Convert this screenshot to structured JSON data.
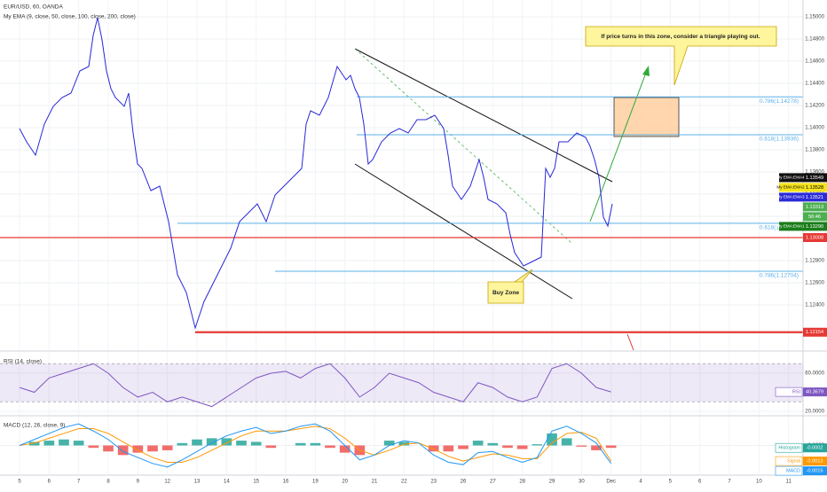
{
  "chart_data": [
    {
      "type": "line",
      "title": "EUR/USD, 60, OANDA",
      "subtitle": "My EMA (9, close, 50, close, 100, close, 200, close)",
      "x": [
        0,
        0.24,
        0.54,
        0.84,
        1.14,
        1.44,
        1.74,
        2.04,
        2.34,
        2.49,
        2.64,
        2.79,
        2.94,
        3.09,
        3.24,
        3.54,
        3.69,
        3.84,
        3.99,
        4.14,
        4.44,
        4.74,
        5.04,
        5.34,
        5.64,
        5.94,
        6.24,
        6.54,
        6.84,
        7.14,
        7.44,
        7.74,
        8.04,
        8.34,
        8.64,
        8.94,
        9.24,
        9.54,
        9.69,
        9.84,
        10.14,
        10.44,
        10.74,
        11.04,
        11.19,
        11.34,
        11.49,
        11.64,
        11.79,
        11.94,
        12.24,
        12.54,
        12.84,
        13.14,
        13.44,
        13.74,
        14.04,
        14.34,
        14.49,
        14.64,
        14.94,
        15.24,
        15.54,
        15.69,
        15.84,
        16.14,
        16.44,
        16.59,
        16.74,
        17.04,
        17.34,
        17.64,
        17.79,
        17.94,
        18.09,
        18.24,
        18.54,
        18.84,
        19.14,
        19.29,
        19.44,
        19.59,
        19.74,
        19.89,
        20.04
      ],
      "series": [
        {
          "name": "EUR/USD",
          "color": "#2828d8",
          "values": [
            1.13992,
            1.13872,
            1.13752,
            1.14032,
            1.14192,
            1.14272,
            1.14312,
            1.14512,
            1.14552,
            1.14832,
            1.14992,
            1.14792,
            1.14512,
            1.14352,
            1.14272,
            1.14192,
            1.14312,
            1.13952,
            1.13672,
            1.13632,
            1.13432,
            1.13472,
            1.13152,
            1.12672,
            1.12512,
            1.12192,
            1.12432,
            1.12592,
            1.12752,
            1.12912,
            1.13152,
            1.13232,
            1.13312,
            1.13152,
            1.13392,
            1.13472,
            1.13552,
            1.13632,
            1.14032,
            1.14152,
            1.14112,
            1.14272,
            1.14552,
            1.14432,
            1.14472,
            1.14352,
            1.14272,
            1.14032,
            1.13672,
            1.13712,
            1.13872,
            1.13952,
            1.13992,
            1.13952,
            1.14072,
            1.14072,
            1.14112,
            1.13992,
            1.13752,
            1.13472,
            1.13352,
            1.13472,
            1.13712,
            1.13552,
            1.13352,
            1.13312,
            1.13232,
            1.13032,
            1.12872,
            1.12752,
            1.12792,
            1.12832,
            1.13632,
            1.13552,
            1.13632,
            1.13872,
            1.13872,
            1.13952,
            1.13912,
            1.13832,
            1.13712,
            1.13552,
            1.13192,
            1.13112,
            1.13312
          ]
        }
      ],
      "xlim": [
        -0.66,
        26.49
      ],
      "ylim": [
        1.11992,
        1.15152
      ],
      "yticks": [
        {
          "value": 1.15,
          "label": "1.15000"
        },
        {
          "value": 1.148,
          "label": "1.14800"
        },
        {
          "value": 1.146,
          "label": "1.14600"
        },
        {
          "value": 1.144,
          "label": "1.14400"
        },
        {
          "value": 1.142,
          "label": "1.14200"
        },
        {
          "value": 1.14,
          "label": "1.14000"
        },
        {
          "value": 1.138,
          "label": "1.13800"
        },
        {
          "value": 1.136,
          "label": "1.13600"
        },
        {
          "value": 1.134,
          "label": "1.13400"
        },
        {
          "value": 1.132,
          "label": "1.13200"
        },
        {
          "value": 1.128,
          "label": "1.12800"
        },
        {
          "value": 1.126,
          "label": "1.12600"
        },
        {
          "value": 1.124,
          "label": "1.12400"
        }
      ],
      "grid": true,
      "levels": [
        {
          "label": "0.786(1.14278)",
          "value": 1.14278,
          "x0": 11.4,
          "color": "#5bb0e8",
          "width": 1
        },
        {
          "label": "0.618(1.13936)",
          "value": 1.13936,
          "x0": 11.4,
          "color": "#5bb0e8",
          "width": 1
        },
        {
          "label": "0.618(1.13137)",
          "value": 1.13137,
          "x0": 5.34,
          "color": "#5bb0e8",
          "width": 1
        },
        {
          "label": "0.786(1.12704)",
          "value": 1.12704,
          "x0": 8.64,
          "color": "#5bb0e8",
          "width": 1
        },
        {
          "value": 1.13008,
          "x0": -0.66,
          "color": "#e53935",
          "width": 1.2
        },
        {
          "value": 1.12154,
          "x0": 5.94,
          "color": "#e53935",
          "width": 2.2
        }
      ],
      "tags": [
        {
          "name": "My EMA:EMA4",
          "value": 1.13549,
          "label": "1.13549",
          "color": "#111111",
          "text_color": "#ffffff"
        },
        {
          "name": "My EMA:EMA2",
          "value": 1.13528,
          "label": "1.13528",
          "color": "#f3e21c",
          "text_color": "#000000"
        },
        {
          "name": "My EMA:EMA3",
          "value": 1.13521,
          "label": "1.13521",
          "color": "#2b2bd8",
          "text_color": "#ffffff"
        },
        {
          "value": 1.13313,
          "label": "1.13313",
          "color": "#4caf50",
          "text_color": "#ffffff"
        },
        {
          "name": "My EMA:EMA1",
          "value": 1.1329,
          "label": "1.13290",
          "color": "#1b7d1b",
          "text_color": "#ffffff"
        },
        {
          "value": 1.13008,
          "label": "1.13008",
          "color": "#e53935",
          "text_color": "#ffffff"
        },
        {
          "value": 1.12154,
          "label": "1.12154",
          "color": "#e53935",
          "text_color": "#ffffff"
        }
      ],
      "countdown": "56:46",
      "annotations": [
        "If price turns in this zone, consider a triangle playing out.",
        "Buy Zone"
      ]
    },
    {
      "type": "line",
      "title": "RSI (14, close)",
      "x": [
        0,
        0.5,
        1,
        1.5,
        2,
        2.5,
        3,
        3.5,
        4,
        4.5,
        5,
        5.5,
        6,
        6.5,
        7,
        7.5,
        8,
        8.5,
        9,
        9.5,
        10,
        10.5,
        11,
        11.5,
        12,
        12.5,
        13,
        13.5,
        14,
        14.5,
        15,
        15.5,
        16,
        16.5,
        17,
        17.5,
        18,
        18.5,
        19,
        19.5,
        20
      ],
      "series": [
        {
          "name": "RSI",
          "color": "#7e57c2",
          "values": [
            45,
            40,
            55,
            60,
            65,
            70,
            60,
            45,
            35,
            40,
            30,
            35,
            30,
            25,
            35,
            45,
            55,
            60,
            62,
            55,
            65,
            70,
            55,
            35,
            45,
            60,
            55,
            50,
            40,
            35,
            30,
            50,
            45,
            35,
            30,
            35,
            65,
            70,
            60,
            45,
            40.3679
          ]
        }
      ],
      "xlim": [
        -0.66,
        26.49
      ],
      "ylim": [
        16.3,
        81.4
      ],
      "yticks": [
        {
          "value": 60,
          "label": "60.0000"
        },
        {
          "value": 20,
          "label": "20.0000"
        }
      ],
      "bands": [
        70,
        30
      ]
    },
    {
      "type": "macd",
      "title": "MACD (12, 26, close, 9)",
      "x": [
        0,
        0.5,
        1,
        1.5,
        2,
        2.5,
        3,
        3.5,
        4,
        4.5,
        5,
        5.5,
        6,
        6.5,
        7,
        7.5,
        8,
        8.5,
        9,
        9.5,
        10,
        10.5,
        11,
        11.5,
        12,
        12.5,
        13,
        13.5,
        14,
        14.5,
        15,
        15.5,
        16,
        16.5,
        17,
        17.5,
        18,
        18.5,
        19,
        19.5,
        20
      ],
      "series": [
        {
          "name": "Histogram",
          "color": "#26a69a",
          "negative_color": "#ef5350",
          "values": [
            0,
            0.0003,
            0.0004,
            0.0005,
            0.0004,
            -0.0002,
            -0.0005,
            -0.0008,
            -0.0006,
            -0.0005,
            -0.0004,
            0.0002,
            0.0005,
            0.0006,
            0.0006,
            0.0004,
            0.0003,
            -0.0002,
            0,
            0.0002,
            0.0002,
            -0.0002,
            -0.0006,
            -0.0008,
            0,
            0.0004,
            0.0003,
            0,
            -0.0005,
            -0.0005,
            -0.0003,
            0.0004,
            0.0002,
            -0.0002,
            -0.0003,
            0.0001,
            0.001,
            0.0006,
            -0.0001,
            -0.0004,
            -0.0002
          ]
        },
        {
          "name": "Signal",
          "color": "#ff9800",
          "values": [
            0,
            0.0002,
            0.0006,
            0.001,
            0.0014,
            0.0014,
            0.001,
            0.0003,
            -0.0004,
            -0.001,
            -0.0014,
            -0.0014,
            -0.001,
            -0.0004,
            0.0002,
            0.0008,
            0.0012,
            0.0012,
            0.0012,
            0.0014,
            0.0016,
            0.0014,
            0.0006,
            -0.0004,
            -0.0008,
            -0.0004,
            0.0001,
            0.0002,
            -0.0003,
            -0.0009,
            -0.0013,
            -0.001,
            -0.0007,
            -0.0008,
            -0.0011,
            -0.0011,
            0.0002,
            0.001,
            0.0011,
            0.0006,
            -0.0013
          ]
        },
        {
          "name": "MACD",
          "color": "#2196f3",
          "values": [
            0,
            0.0005,
            0.001,
            0.0015,
            0.0018,
            0.0012,
            0.0005,
            -0.0005,
            -0.001,
            -0.0015,
            -0.0018,
            -0.0012,
            -0.0005,
            0.0002,
            0.0008,
            0.0012,
            0.0015,
            0.001,
            0.0012,
            0.0016,
            0.0018,
            0.0012,
            0,
            -0.0012,
            -0.0008,
            0,
            0.0004,
            0.0002,
            -0.0008,
            -0.0014,
            -0.0016,
            -0.0006,
            -0.0005,
            -0.001,
            -0.0014,
            -0.001,
            0.0012,
            0.0016,
            0.001,
            0.0002,
            -0.0015
          ]
        }
      ],
      "xlim": [
        -0.66,
        26.49
      ],
      "ylim": [
        -0.0024,
        0.0024
      ],
      "yticks": [
        {
          "value": 0,
          "label": "0.0000"
        }
      ],
      "xticks": [
        {
          "value": 0,
          "label": "5"
        },
        {
          "value": 1,
          "label": "6"
        },
        {
          "value": 2,
          "label": "7"
        },
        {
          "value": 3,
          "label": "8"
        },
        {
          "value": 4,
          "label": "9"
        },
        {
          "value": 5,
          "label": "12"
        },
        {
          "value": 6,
          "label": "13"
        },
        {
          "value": 7,
          "label": "14"
        },
        {
          "value": 8,
          "label": "15"
        },
        {
          "value": 9,
          "label": "16"
        },
        {
          "value": 10,
          "label": "19"
        },
        {
          "value": 11,
          "label": "20"
        },
        {
          "value": 12,
          "label": "21"
        },
        {
          "value": 13,
          "label": "22"
        },
        {
          "value": 14,
          "label": "23"
        },
        {
          "value": 15,
          "label": "26"
        },
        {
          "value": 16,
          "label": "27"
        },
        {
          "value": 17,
          "label": "28"
        },
        {
          "value": 18,
          "label": "29"
        },
        {
          "value": 19,
          "label": "30"
        },
        {
          "value": 20,
          "label": "Dec"
        },
        {
          "value": 21,
          "label": "4"
        },
        {
          "value": 22,
          "label": "5"
        },
        {
          "value": 23,
          "label": "6"
        },
        {
          "value": 24,
          "label": "7"
        },
        {
          "value": 25,
          "label": "10"
        },
        {
          "value": 26,
          "label": "11"
        }
      ]
    }
  ]
}
